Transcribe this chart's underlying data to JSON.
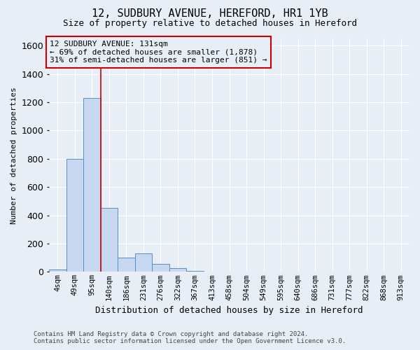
{
  "title_line1": "12, SUDBURY AVENUE, HEREFORD, HR1 1YB",
  "title_line2": "Size of property relative to detached houses in Hereford",
  "xlabel": "Distribution of detached houses by size in Hereford",
  "ylabel": "Number of detached properties",
  "footnote": "Contains HM Land Registry data © Crown copyright and database right 2024.\nContains public sector information licensed under the Open Government Licence v3.0.",
  "bin_labels": [
    "4sqm",
    "49sqm",
    "95sqm",
    "140sqm",
    "186sqm",
    "231sqm",
    "276sqm",
    "322sqm",
    "367sqm",
    "413sqm",
    "458sqm",
    "504sqm",
    "549sqm",
    "595sqm",
    "640sqm",
    "686sqm",
    "731sqm",
    "777sqm",
    "822sqm",
    "868sqm",
    "913sqm"
  ],
  "bar_values": [
    18,
    800,
    1230,
    450,
    100,
    130,
    55,
    25,
    8,
    3,
    1,
    0,
    0,
    0,
    0,
    0,
    0,
    0,
    0,
    0,
    0
  ],
  "bar_color": "#c5d8ef",
  "bar_edge_color": "#5b8ec4",
  "property_line_x": 2.5,
  "property_line_color": "#cc0000",
  "annotation_text": "12 SUDBURY AVENUE: 131sqm\n← 69% of detached houses are smaller (1,878)\n31% of semi-detached houses are larger (851) →",
  "annotation_box_color": "#cc0000",
  "annotation_text_color": "black",
  "ylim": [
    0,
    1650
  ],
  "yticks": [
    0,
    200,
    400,
    600,
    800,
    1000,
    1200,
    1400,
    1600
  ],
  "background_color": "#e8eef5",
  "grid_color": "white"
}
